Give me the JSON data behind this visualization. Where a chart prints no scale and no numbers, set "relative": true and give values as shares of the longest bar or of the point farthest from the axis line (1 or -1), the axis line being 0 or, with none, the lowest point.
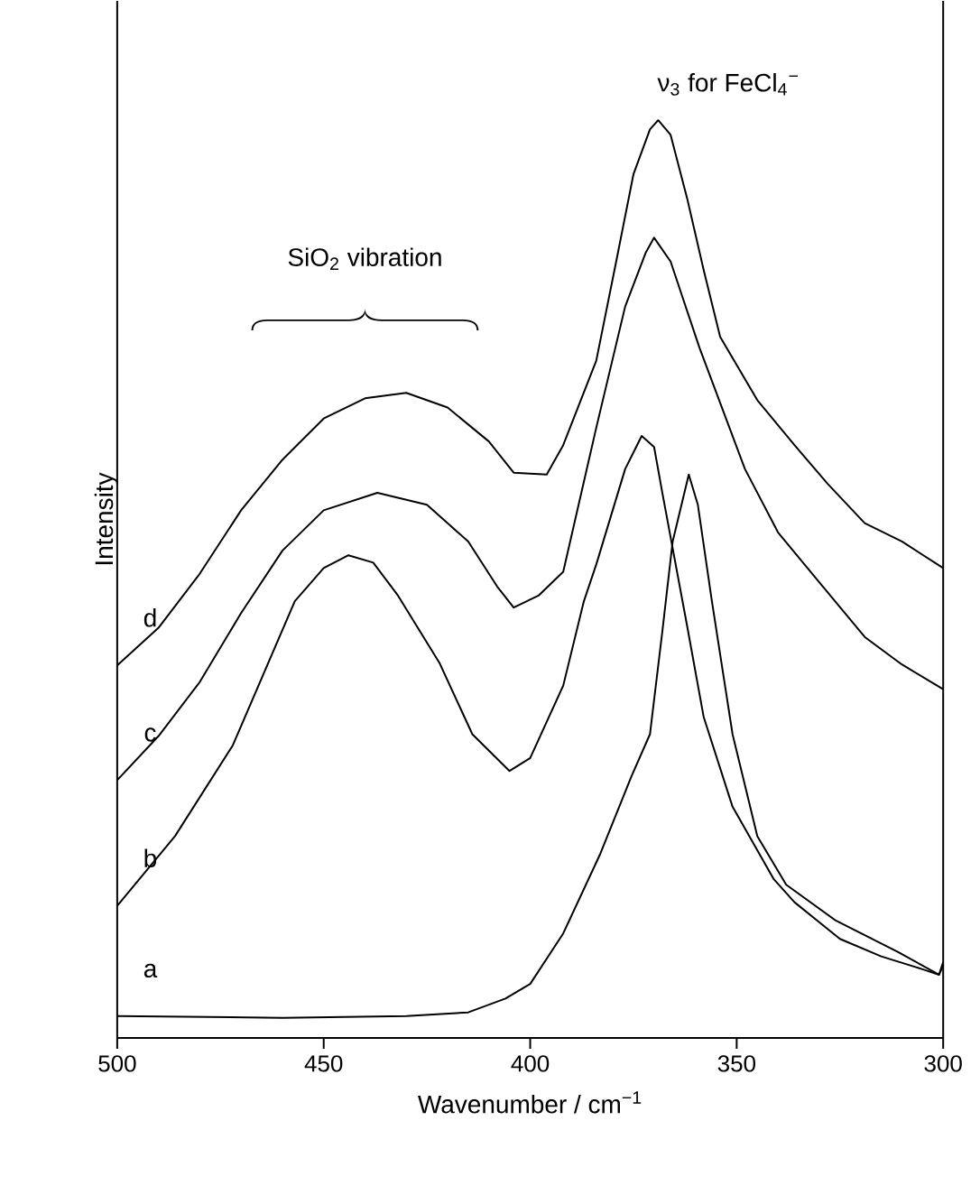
{
  "chart_data": {
    "type": "line",
    "relative": true,
    "xlabel": "Wavenumber / cm$^{−1}$",
    "ylabel": "Intensity",
    "xlim": [
      500,
      300
    ],
    "xticks": [
      500,
      450,
      400,
      350,
      300
    ],
    "marker": "none",
    "legend": false,
    "annotations": [
      "SiO$_{2}$ vibration",
      "ν$_{3}$ for FeCl$_{4}$$^{−}$"
    ],
    "series": [
      {
        "name": "a",
        "color": "#000000",
        "x": [
          500,
          460,
          430,
          415,
          406,
          400,
          392,
          383,
          375.5,
          371,
          368,
          365.5,
          361.6,
          359.4,
          356,
          351,
          345,
          338,
          326,
          311,
          301,
          300
        ],
        "values": [
          0.024,
          0.022,
          0.024,
          0.028,
          0.043,
          0.059,
          0.114,
          0.201,
          0.285,
          0.331,
          0.443,
          0.541,
          0.614,
          0.581,
          0.476,
          0.331,
          0.22,
          0.167,
          0.128,
          0.094,
          0.069,
          0.083
        ]
      },
      {
        "name": "b",
        "color": "#000000",
        "x": [
          500,
          486,
          472,
          457,
          450,
          444,
          438,
          432,
          422,
          414,
          405,
          400,
          392,
          387,
          384,
          377,
          373,
          370,
          368,
          362,
          358,
          351,
          341,
          336,
          325,
          315,
          305,
          301,
          300
        ],
        "values": [
          0.144,
          0.22,
          0.319,
          0.476,
          0.512,
          0.526,
          0.518,
          0.482,
          0.409,
          0.331,
          0.291,
          0.305,
          0.384,
          0.476,
          0.516,
          0.62,
          0.656,
          0.644,
          0.594,
          0.449,
          0.35,
          0.252,
          0.173,
          0.148,
          0.108,
          0.089,
          0.075,
          0.069,
          0.079
        ]
      },
      {
        "name": "c",
        "color": "#000000",
        "x": [
          500,
          490,
          480,
          470,
          460,
          450,
          437,
          425,
          415,
          408,
          404,
          398,
          392,
          384,
          377,
          372,
          370,
          366,
          359,
          348,
          340,
          331,
          319,
          310,
          300
        ],
        "values": [
          0.281,
          0.329,
          0.388,
          0.463,
          0.531,
          0.575,
          0.594,
          0.581,
          0.541,
          0.492,
          0.469,
          0.482,
          0.508,
          0.665,
          0.797,
          0.856,
          0.872,
          0.846,
          0.752,
          0.62,
          0.551,
          0.502,
          0.437,
          0.407,
          0.38
        ]
      },
      {
        "name": "d",
        "color": "#000000",
        "x": [
          500,
          490,
          480,
          470,
          460,
          450,
          440,
          430,
          420,
          410,
          404,
          396,
          392,
          384,
          379,
          375,
          371,
          369,
          366,
          362,
          358,
          354,
          345,
          336,
          328,
          319,
          310,
          300
        ],
        "values": [
          0.406,
          0.447,
          0.506,
          0.575,
          0.63,
          0.675,
          0.697,
          0.703,
          0.687,
          0.65,
          0.616,
          0.614,
          0.646,
          0.738,
          0.85,
          0.941,
          0.99,
          1.0,
          0.984,
          0.915,
          0.837,
          0.764,
          0.695,
          0.646,
          0.604,
          0.561,
          0.541,
          0.512
        ]
      }
    ]
  }
}
